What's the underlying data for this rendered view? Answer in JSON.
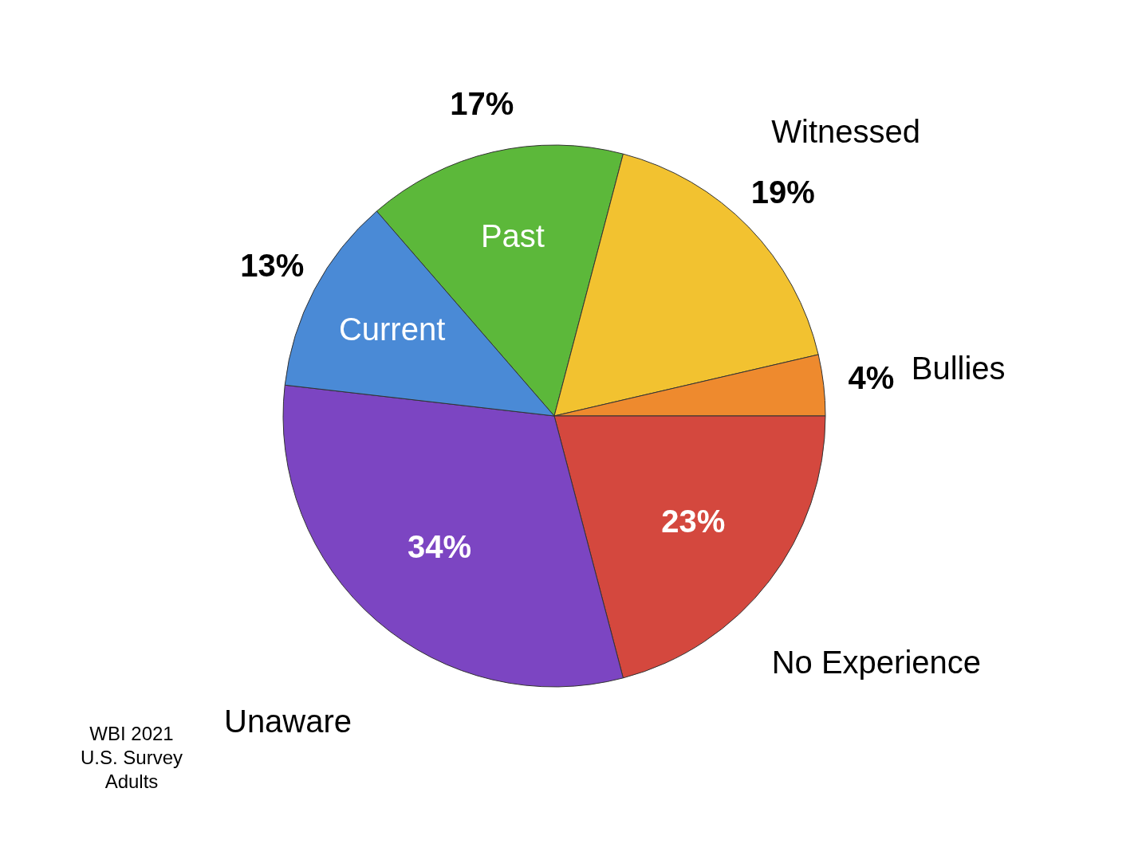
{
  "chart_data": {
    "type": "pie",
    "categories": [
      "Past",
      "Witnessed",
      "Bullies",
      "No Experience",
      "Unaware",
      "Current"
    ],
    "values": [
      17,
      19,
      4,
      23,
      34,
      13
    ],
    "value_labels": [
      "17%",
      "19%",
      "4%",
      "23%",
      "34%",
      "13%"
    ],
    "colors": [
      "#5cb83a",
      "#f2c230",
      "#ee8a2e",
      "#d4483e",
      "#7c45c2",
      "#4a8ad6"
    ],
    "annotations": [
      "WBI 2021\nU.S. Survey\nAdults"
    ]
  }
}
